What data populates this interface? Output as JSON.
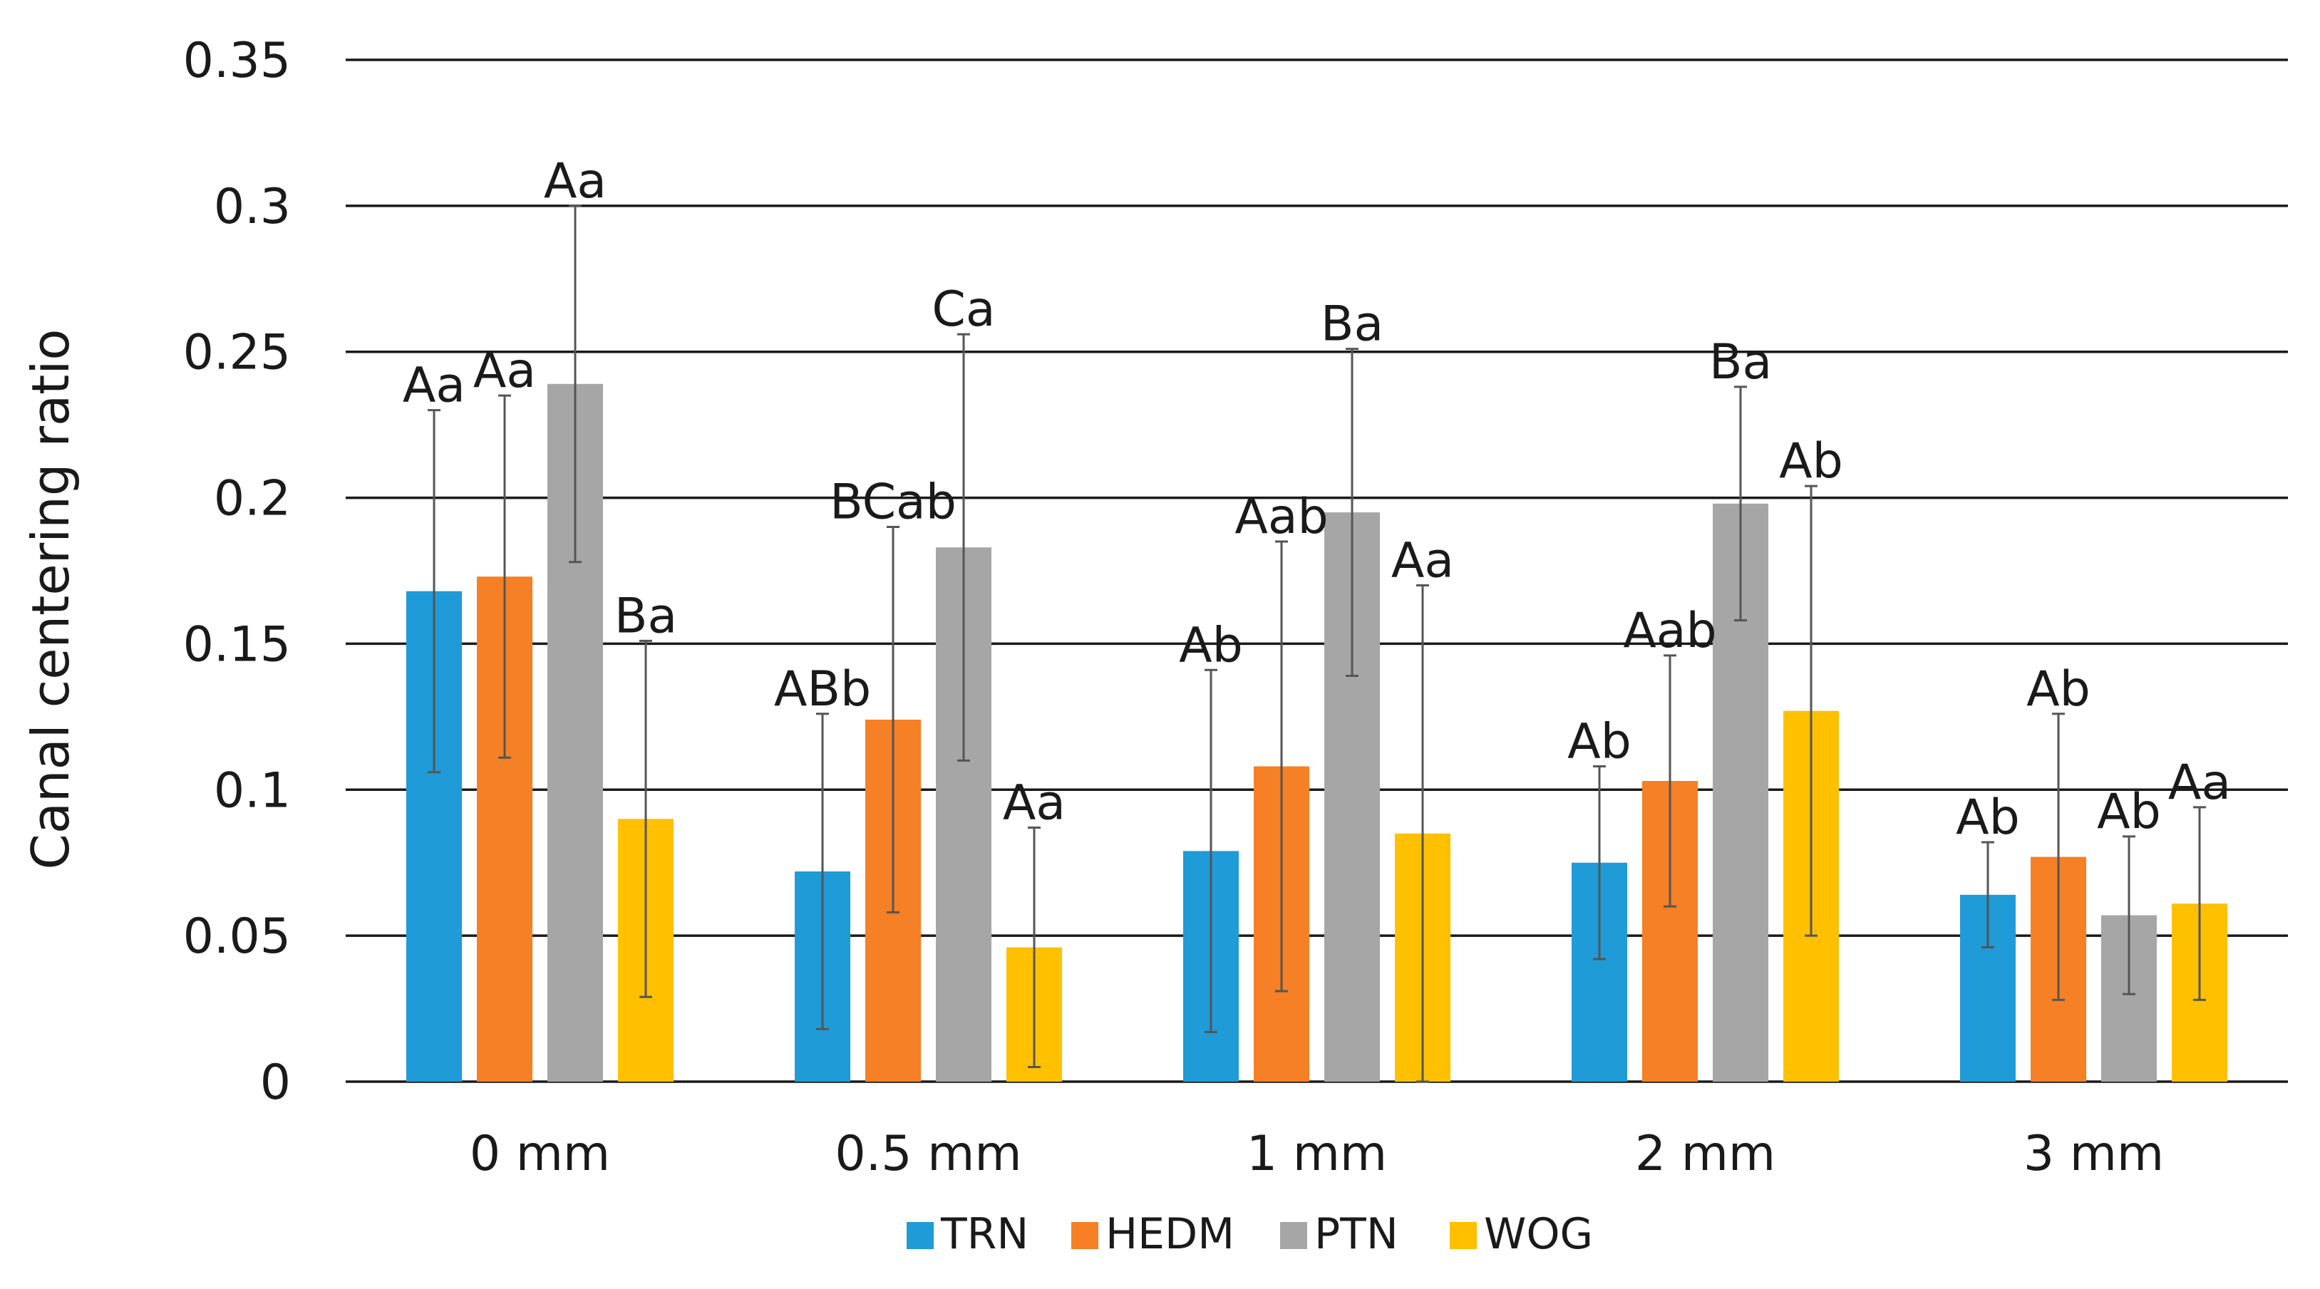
{
  "chart_data": {
    "type": "bar",
    "title": "",
    "xlabel": "",
    "ylabel": "Canal centering ratio",
    "ylim": [
      0,
      0.35
    ],
    "yticks": [
      "0",
      "0.05",
      "0.1",
      "0.15",
      "0.2",
      "0.25",
      "0.3",
      "0.35"
    ],
    "ytick_values": [
      0,
      0.05,
      0.1,
      0.15,
      0.2,
      0.25,
      0.3,
      0.35
    ],
    "grid": true,
    "legend_position": "bottom",
    "categories": [
      "0 mm",
      "0.5 mm",
      "1 mm",
      "2 mm",
      "3 mm"
    ],
    "series": [
      {
        "name": "TRN",
        "color": "#1f9bd7",
        "values": [
          0.168,
          0.072,
          0.079,
          0.075,
          0.064
        ],
        "errors": [
          0.062,
          0.054,
          0.062,
          0.033,
          0.018
        ],
        "labels": [
          "Aa",
          "ABb",
          "Ab",
          "Ab",
          "Ab"
        ]
      },
      {
        "name": "HEDM",
        "color": "#f58025",
        "values": [
          0.173,
          0.124,
          0.108,
          0.103,
          0.077
        ],
        "errors": [
          0.062,
          0.066,
          0.077,
          0.043,
          0.049
        ],
        "labels": [
          "Aa",
          "BCab",
          "Aab",
          "Aab",
          "Ab"
        ]
      },
      {
        "name": "PTN",
        "color": "#a6a6a6",
        "values": [
          0.239,
          0.183,
          0.195,
          0.198,
          0.057
        ],
        "errors": [
          0.061,
          0.073,
          0.056,
          0.04,
          0.027
        ],
        "labels": [
          "Aa",
          "Ca",
          "Ba",
          "Ba",
          "Ab"
        ]
      },
      {
        "name": "WOG",
        "color": "#ffc000",
        "values": [
          0.09,
          0.046,
          0.085,
          0.127,
          0.061
        ],
        "errors": [
          0.061,
          0.041,
          0.085,
          0.077,
          0.033
        ],
        "labels": [
          "Ba",
          "Aa",
          "Aa",
          "Ab",
          "Aa"
        ]
      }
    ]
  }
}
